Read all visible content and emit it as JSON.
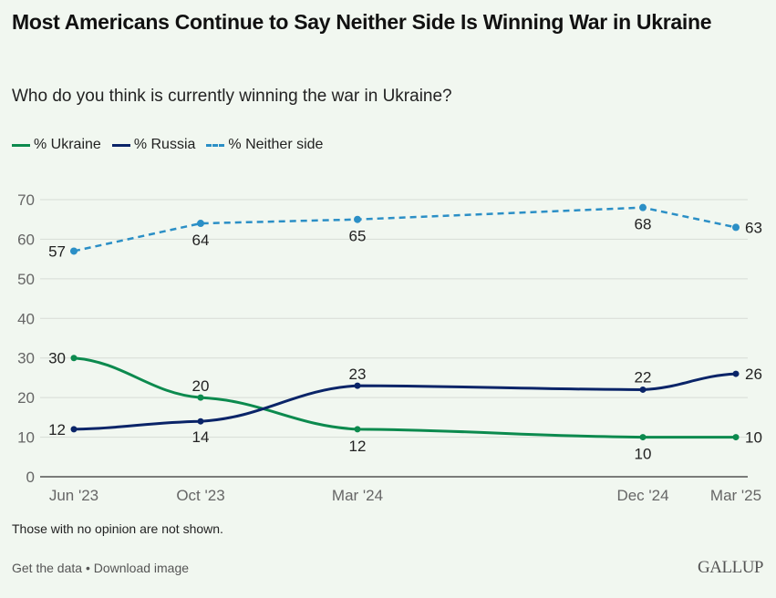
{
  "header": {
    "title": "Most Americans Continue to Say Neither Side Is Winning War in Ukraine",
    "subtitle": "Who do you think is currently winning the war in Ukraine?"
  },
  "legend": [
    {
      "label": "% Ukraine",
      "color": "#0c8a4e",
      "style": "solid"
    },
    {
      "label": "% Russia",
      "color": "#0a2468",
      "style": "solid"
    },
    {
      "label": "% Neither side",
      "color": "#2b8fc6",
      "style": "dashed"
    }
  ],
  "chart_data": {
    "type": "line",
    "title": "Most Americans Continue to Say Neither Side Is Winning War in Ukraine",
    "subtitle": "Who do you think is currently winning the war in Ukraine?",
    "xlabel": "",
    "ylabel": "",
    "x": [
      "Jun '23",
      "Oct '23",
      "Mar '24",
      "Dec '24",
      "Mar '25"
    ],
    "x_dates": [
      "2023-06",
      "2023-10",
      "2024-03",
      "2024-12",
      "2025-03"
    ],
    "ylim": [
      0,
      70
    ],
    "yticks": [
      0,
      10,
      20,
      30,
      40,
      50,
      60,
      70
    ],
    "grid": true,
    "legend_position": "top-left",
    "series": [
      {
        "name": "% Ukraine",
        "color": "#0c8a4e",
        "style": "solid",
        "values": [
          30,
          20,
          12,
          10,
          10
        ]
      },
      {
        "name": "% Russia",
        "color": "#0a2468",
        "style": "solid",
        "values": [
          12,
          14,
          23,
          22,
          26
        ]
      },
      {
        "name": "% Neither side",
        "color": "#2b8fc6",
        "style": "dashed",
        "values": [
          57,
          64,
          65,
          68,
          63
        ]
      }
    ]
  },
  "footer": {
    "note": "Those with no opinion are not shown.",
    "get_data": "Get the data",
    "separator": "•",
    "download": "Download image",
    "logo": "GALLUP"
  }
}
